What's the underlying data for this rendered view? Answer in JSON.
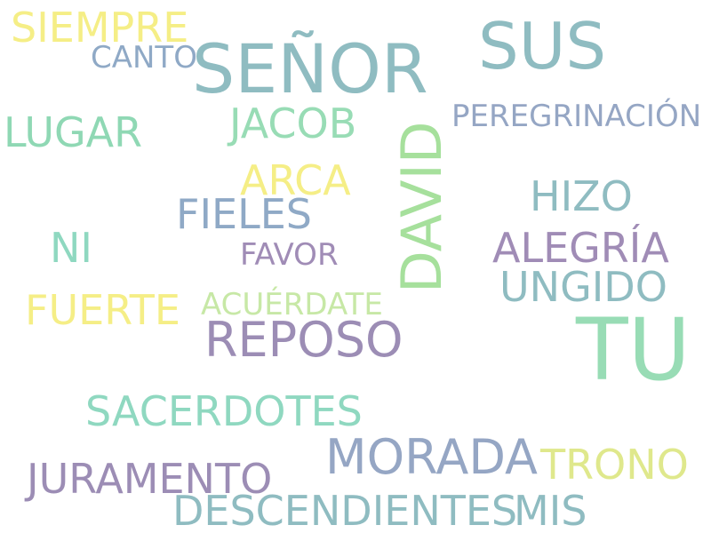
{
  "palette": {
    "background": "#ffffff",
    "teal": "#8fbcc1",
    "mint": "#8fd8b4",
    "yellow": "#f5ee86",
    "purple": "#9c8db5",
    "slate": "#93a6c0",
    "green_mint": "#9ad6a0",
    "light_yellow": "#dfe88c",
    "light_green": "#b9e4a6"
  },
  "words": [
    {
      "id": "senor",
      "text": "SEÑOR",
      "color": "#8fbcc1"
    },
    {
      "id": "tu",
      "text": "TU",
      "color": "#98dcb5"
    },
    {
      "id": "david",
      "text": "DAVID",
      "color": "#a6e09c"
    },
    {
      "id": "sus",
      "text": "SUS",
      "color": "#8fbcc1"
    },
    {
      "id": "reposo",
      "text": "REPOSO",
      "color": "#9c8db5"
    },
    {
      "id": "morada",
      "text": "MORADA",
      "color": "#95a6c4"
    },
    {
      "id": "descendientes",
      "text": "DESCENDIENTES",
      "color": "#8fbcc1"
    },
    {
      "id": "alegria",
      "text": "ALEGRÍA",
      "color": "#a08cb6"
    },
    {
      "id": "sacerdotes",
      "text": "SACERDOTES",
      "color": "#8fd8c0"
    },
    {
      "id": "juramento",
      "text": "JURAMENTO",
      "color": "#9c8db5"
    },
    {
      "id": "fieles",
      "text": "FIELES",
      "color": "#8fa9c6"
    },
    {
      "id": "ungido",
      "text": "UNGIDO",
      "color": "#8fbcc1"
    },
    {
      "id": "siempre",
      "text": "SIEMPRE",
      "color": "#f5ee86"
    },
    {
      "id": "jacob",
      "text": "JACOB",
      "color": "#98dcb5"
    },
    {
      "id": "lugar",
      "text": "LUGAR",
      "color": "#8fd8b4"
    },
    {
      "id": "trono",
      "text": "TRONO",
      "color": "#dfe88c"
    },
    {
      "id": "fuerte",
      "text": "FUERTE",
      "color": "#f5ee86"
    },
    {
      "id": "arca",
      "text": "ARCA",
      "color": "#f5ee86"
    },
    {
      "id": "hizo",
      "text": "HIZO",
      "color": "#8fbcc1"
    },
    {
      "id": "mis",
      "text": "MIS",
      "color": "#8fbcc1"
    },
    {
      "id": "peregrinacion",
      "text": "PEREGRINACIÓN",
      "color": "#95a6c4"
    },
    {
      "id": "ni",
      "text": "NI",
      "color": "#8fd8c0"
    },
    {
      "id": "acuerdate",
      "text": "ACUÉRDATE",
      "color": "#c7e8a6"
    },
    {
      "id": "favor",
      "text": "FAVOR",
      "color": "#a08cb6"
    },
    {
      "id": "canto",
      "text": "CANTO",
      "color": "#8fa9c6"
    }
  ]
}
